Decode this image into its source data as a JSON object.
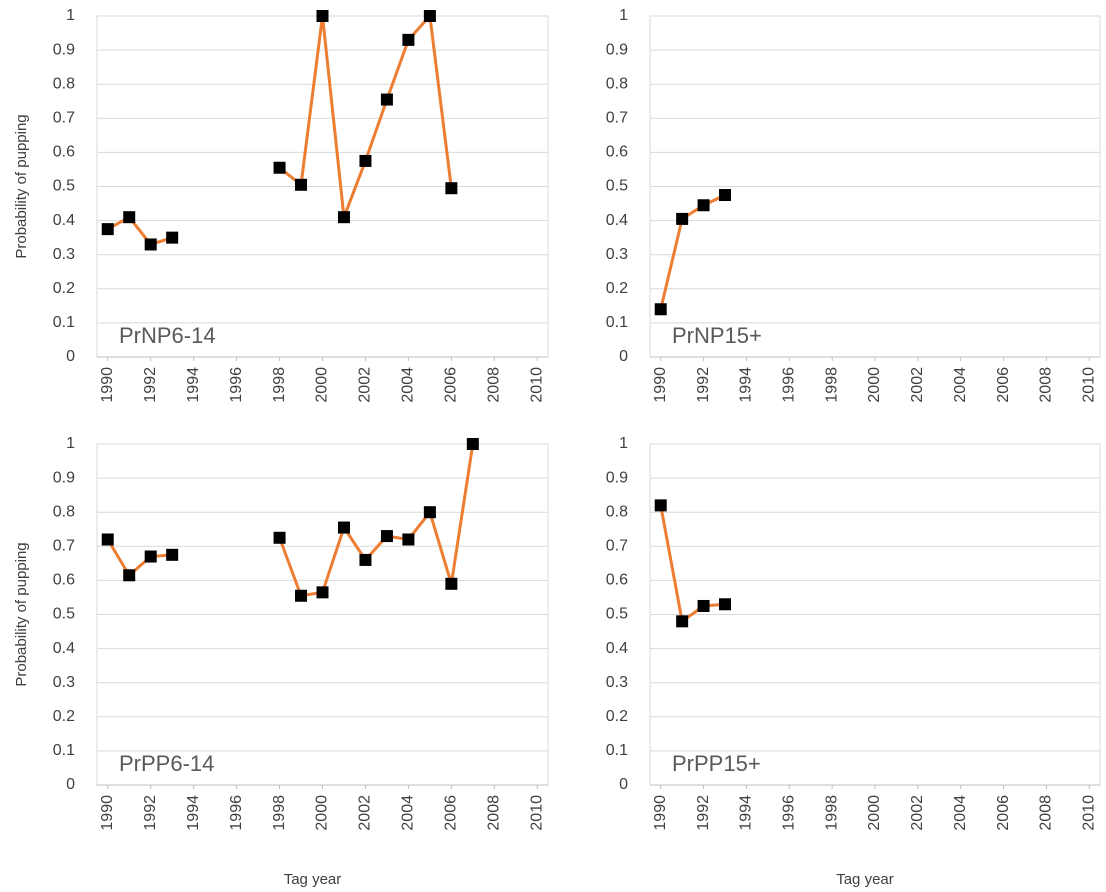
{
  "chart_data": [
    {
      "type": "line",
      "annotation": "PrNP6-14",
      "ylabel": "Probability of pupping",
      "x": [
        1990,
        1991,
        1992,
        1993,
        1994,
        1995,
        1996,
        1997,
        1998,
        1999,
        2000,
        2001,
        2002,
        2003,
        2004,
        2005,
        2006
      ],
      "values": [
        0.375,
        0.41,
        0.33,
        0.35,
        null,
        null,
        null,
        null,
        0.555,
        0.505,
        1.0,
        0.41,
        0.575,
        0.755,
        0.93,
        1.0,
        0.495
      ],
      "color": "#ed7d31",
      "marker_color": "#000000",
      "xlim": [
        1989.5,
        2010.5
      ],
      "xticks": [
        1990,
        1992,
        1994,
        1996,
        1998,
        2000,
        2002,
        2004,
        2006,
        2008,
        2010
      ],
      "ylim": [
        0,
        1
      ],
      "yticks": [
        0,
        0.1,
        0.2,
        0.3,
        0.4,
        0.5,
        0.6,
        0.7,
        0.8,
        0.9,
        1
      ],
      "grid": true
    },
    {
      "type": "line",
      "annotation": "PrNP15+",
      "x": [
        1990,
        1991,
        1992,
        1993
      ],
      "values": [
        0.14,
        0.405,
        0.445,
        0.475
      ],
      "color": "#ed7d31",
      "marker_color": "#000000",
      "xlim": [
        1989.5,
        2010.5
      ],
      "xticks": [
        1990,
        1992,
        1994,
        1996,
        1998,
        2000,
        2002,
        2004,
        2006,
        2008,
        2010
      ],
      "ylim": [
        0,
        1
      ],
      "yticks": [
        0,
        0.1,
        0.2,
        0.3,
        0.4,
        0.5,
        0.6,
        0.7,
        0.8,
        0.9,
        1
      ],
      "grid": true
    },
    {
      "type": "line",
      "annotation": "PrPP6-14",
      "ylabel": "Probability of pupping",
      "xlabel": "Tag year",
      "x": [
        1990,
        1991,
        1992,
        1993,
        1994,
        1995,
        1996,
        1997,
        1998,
        1999,
        2000,
        2001,
        2002,
        2003,
        2004,
        2005,
        2006,
        2007
      ],
      "values": [
        0.72,
        0.615,
        0.67,
        0.675,
        null,
        null,
        null,
        null,
        0.725,
        0.555,
        0.565,
        0.755,
        0.66,
        0.73,
        0.72,
        0.8,
        0.59,
        1.0
      ],
      "color": "#ed7d31",
      "marker_color": "#000000",
      "xlim": [
        1989.5,
        2010.5
      ],
      "xticks": [
        1990,
        1992,
        1994,
        1996,
        1998,
        2000,
        2002,
        2004,
        2006,
        2008,
        2010
      ],
      "ylim": [
        0,
        1
      ],
      "yticks": [
        0,
        0.1,
        0.2,
        0.3,
        0.4,
        0.5,
        0.6,
        0.7,
        0.8,
        0.9,
        1
      ],
      "grid": true
    },
    {
      "type": "line",
      "annotation": "PrPP15+",
      "xlabel": "Tag year",
      "x": [
        1990,
        1991,
        1992,
        1993
      ],
      "values": [
        0.82,
        0.48,
        0.525,
        0.53
      ],
      "color": "#ed7d31",
      "marker_color": "#000000",
      "xlim": [
        1989.5,
        2010.5
      ],
      "xticks": [
        1990,
        1992,
        1994,
        1996,
        1998,
        2000,
        2002,
        2004,
        2006,
        2008,
        2010
      ],
      "ylim": [
        0,
        1
      ],
      "yticks": [
        0,
        0.1,
        0.2,
        0.3,
        0.4,
        0.5,
        0.6,
        0.7,
        0.8,
        0.9,
        1
      ],
      "grid": true
    }
  ]
}
